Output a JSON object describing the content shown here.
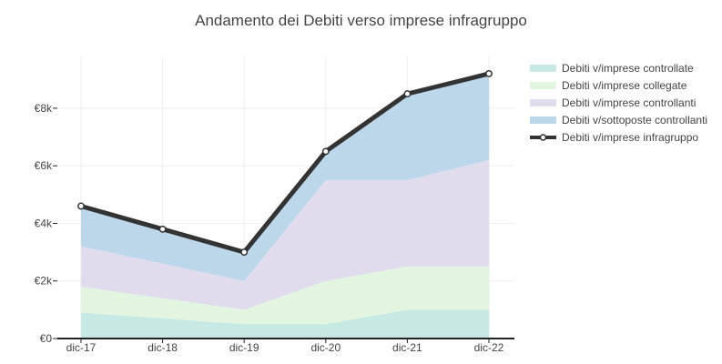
{
  "chart_data": {
    "type": "area",
    "title": "Andamento dei Debiti verso imprese infragruppo",
    "xlabel": "",
    "ylabel": "",
    "categories": [
      "dic-17",
      "dic-18",
      "dic-19",
      "dic-20",
      "dic-21",
      "dic-22"
    ],
    "ylim": [
      0,
      9800
    ],
    "yticks": [
      0,
      2000,
      4000,
      6000,
      8000
    ],
    "ytick_labels": [
      "€0",
      "€2k",
      "€4k",
      "€6k",
      "€8k"
    ],
    "stacked": true,
    "grid": true,
    "legend_position": "right",
    "series": [
      {
        "name": "Debiti v/imprese controllate",
        "kind": "area",
        "color": "#c6e9e3",
        "values": [
          900,
          700,
          500,
          500,
          1000,
          1000
        ]
      },
      {
        "name": "Debiti v/imprese collegate",
        "kind": "area",
        "color": "#e3f4e0",
        "values": [
          900,
          700,
          500,
          1500,
          1500,
          1500
        ]
      },
      {
        "name": "Debiti v/imprese controllanti",
        "kind": "area",
        "color": "#e0dcee",
        "values": [
          1400,
          1200,
          1000,
          3500,
          3000,
          3700
        ]
      },
      {
        "name": "Debiti v/sottoposte controllanti",
        "kind": "area",
        "color": "#bcd6ea",
        "values": [
          1400,
          1200,
          1000,
          1000,
          3000,
          3000
        ]
      },
      {
        "name": "Debiti v/imprese infragruppo",
        "kind": "line",
        "color": "#333333",
        "values": [
          4600,
          3800,
          3000,
          6500,
          8500,
          9200
        ]
      }
    ]
  }
}
